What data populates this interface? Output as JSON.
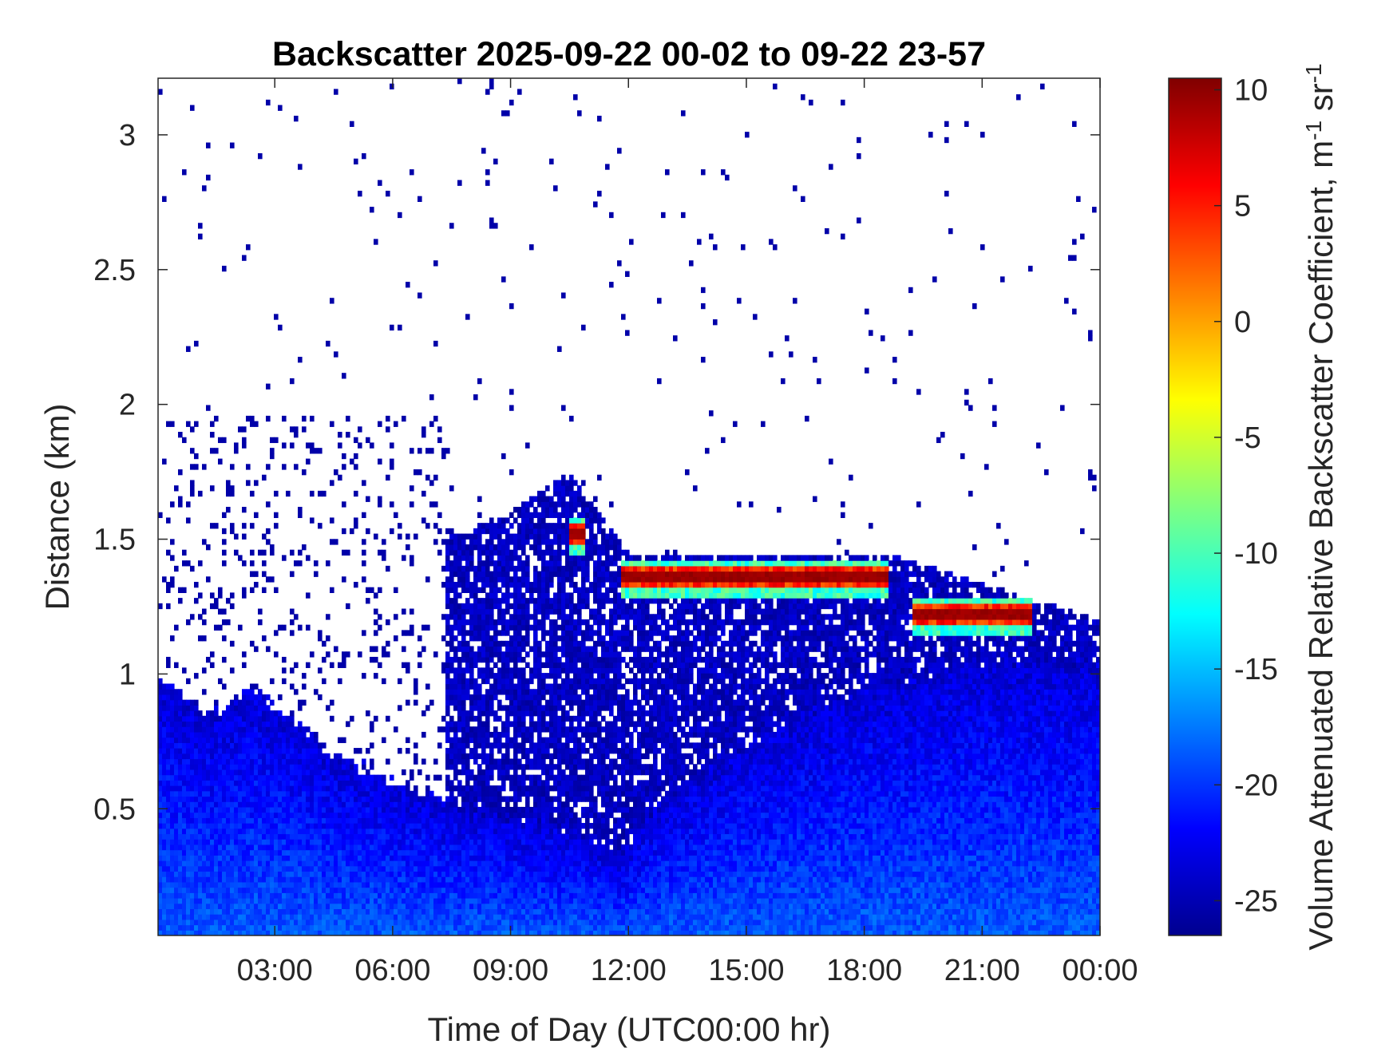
{
  "chart_data": {
    "type": "heatmap",
    "title": "Backscatter 2025-09-22 00-02 to 09-22 23-57",
    "xlabel": "Time of Day (UTC00:00 hr)",
    "ylabel": "Distance (km)",
    "x_ticks": [
      "03:00",
      "06:00",
      "09:00",
      "12:00",
      "15:00",
      "18:00",
      "21:00",
      "00:00"
    ],
    "x_tick_hours": [
      3,
      6,
      9,
      12,
      15,
      18,
      21,
      24
    ],
    "xlim_hours": [
      0.03,
      24
    ],
    "y_ticks": [
      "0.5",
      "1",
      "1.5",
      "2",
      "2.5",
      "3"
    ],
    "y_tick_values": [
      0.5,
      1,
      1.5,
      2,
      2.5,
      3
    ],
    "ylim_km": [
      0.03,
      3.21
    ],
    "colorbar": {
      "label": "Volume Attenuated Relative Backscatter Coefficient, m",
      "label_sup1": "-1",
      "label_mid": " sr",
      "label_sup2": "-1",
      "ticks": [
        "10",
        "5",
        "0",
        "-5",
        "-10",
        "-15",
        "-20",
        "-25"
      ],
      "tick_values": [
        10,
        5,
        0,
        -5,
        -10,
        -15,
        -20,
        -25
      ],
      "range": [
        -26.5,
        10.5
      ],
      "colormap": "jet"
    },
    "features": {
      "aerosol_layer_top_km": [
        [
          0.03,
          0.98
        ],
        [
          1.5,
          0.85
        ],
        [
          2.5,
          0.95
        ],
        [
          4.5,
          0.7
        ],
        [
          6,
          0.6
        ],
        [
          8,
          0.5
        ],
        [
          10,
          0.45
        ],
        [
          11.8,
          0.33
        ],
        [
          13,
          0.55
        ],
        [
          15,
          0.75
        ],
        [
          18,
          0.95
        ],
        [
          21,
          1.05
        ],
        [
          24,
          1.05
        ]
      ],
      "cloud_layers": [
        {
          "start_hour": 10.5,
          "end_hour": 10.9,
          "height_km": 1.52,
          "peak_value": 10
        },
        {
          "start_hour": 11.8,
          "end_hour": 18.6,
          "height_km": 1.36,
          "peak_value": 10
        },
        {
          "start_hour": 19.2,
          "end_hour": 22.3,
          "height_km": 1.22,
          "peak_value": 10
        }
      ],
      "residual_layer_top_km": [
        [
          7.3,
          1.5
        ],
        [
          9,
          1.6
        ],
        [
          10.5,
          1.75
        ],
        [
          12,
          1.45
        ],
        [
          18.5,
          1.45
        ],
        [
          24,
          1.2
        ]
      ],
      "background_value": -25
    }
  }
}
